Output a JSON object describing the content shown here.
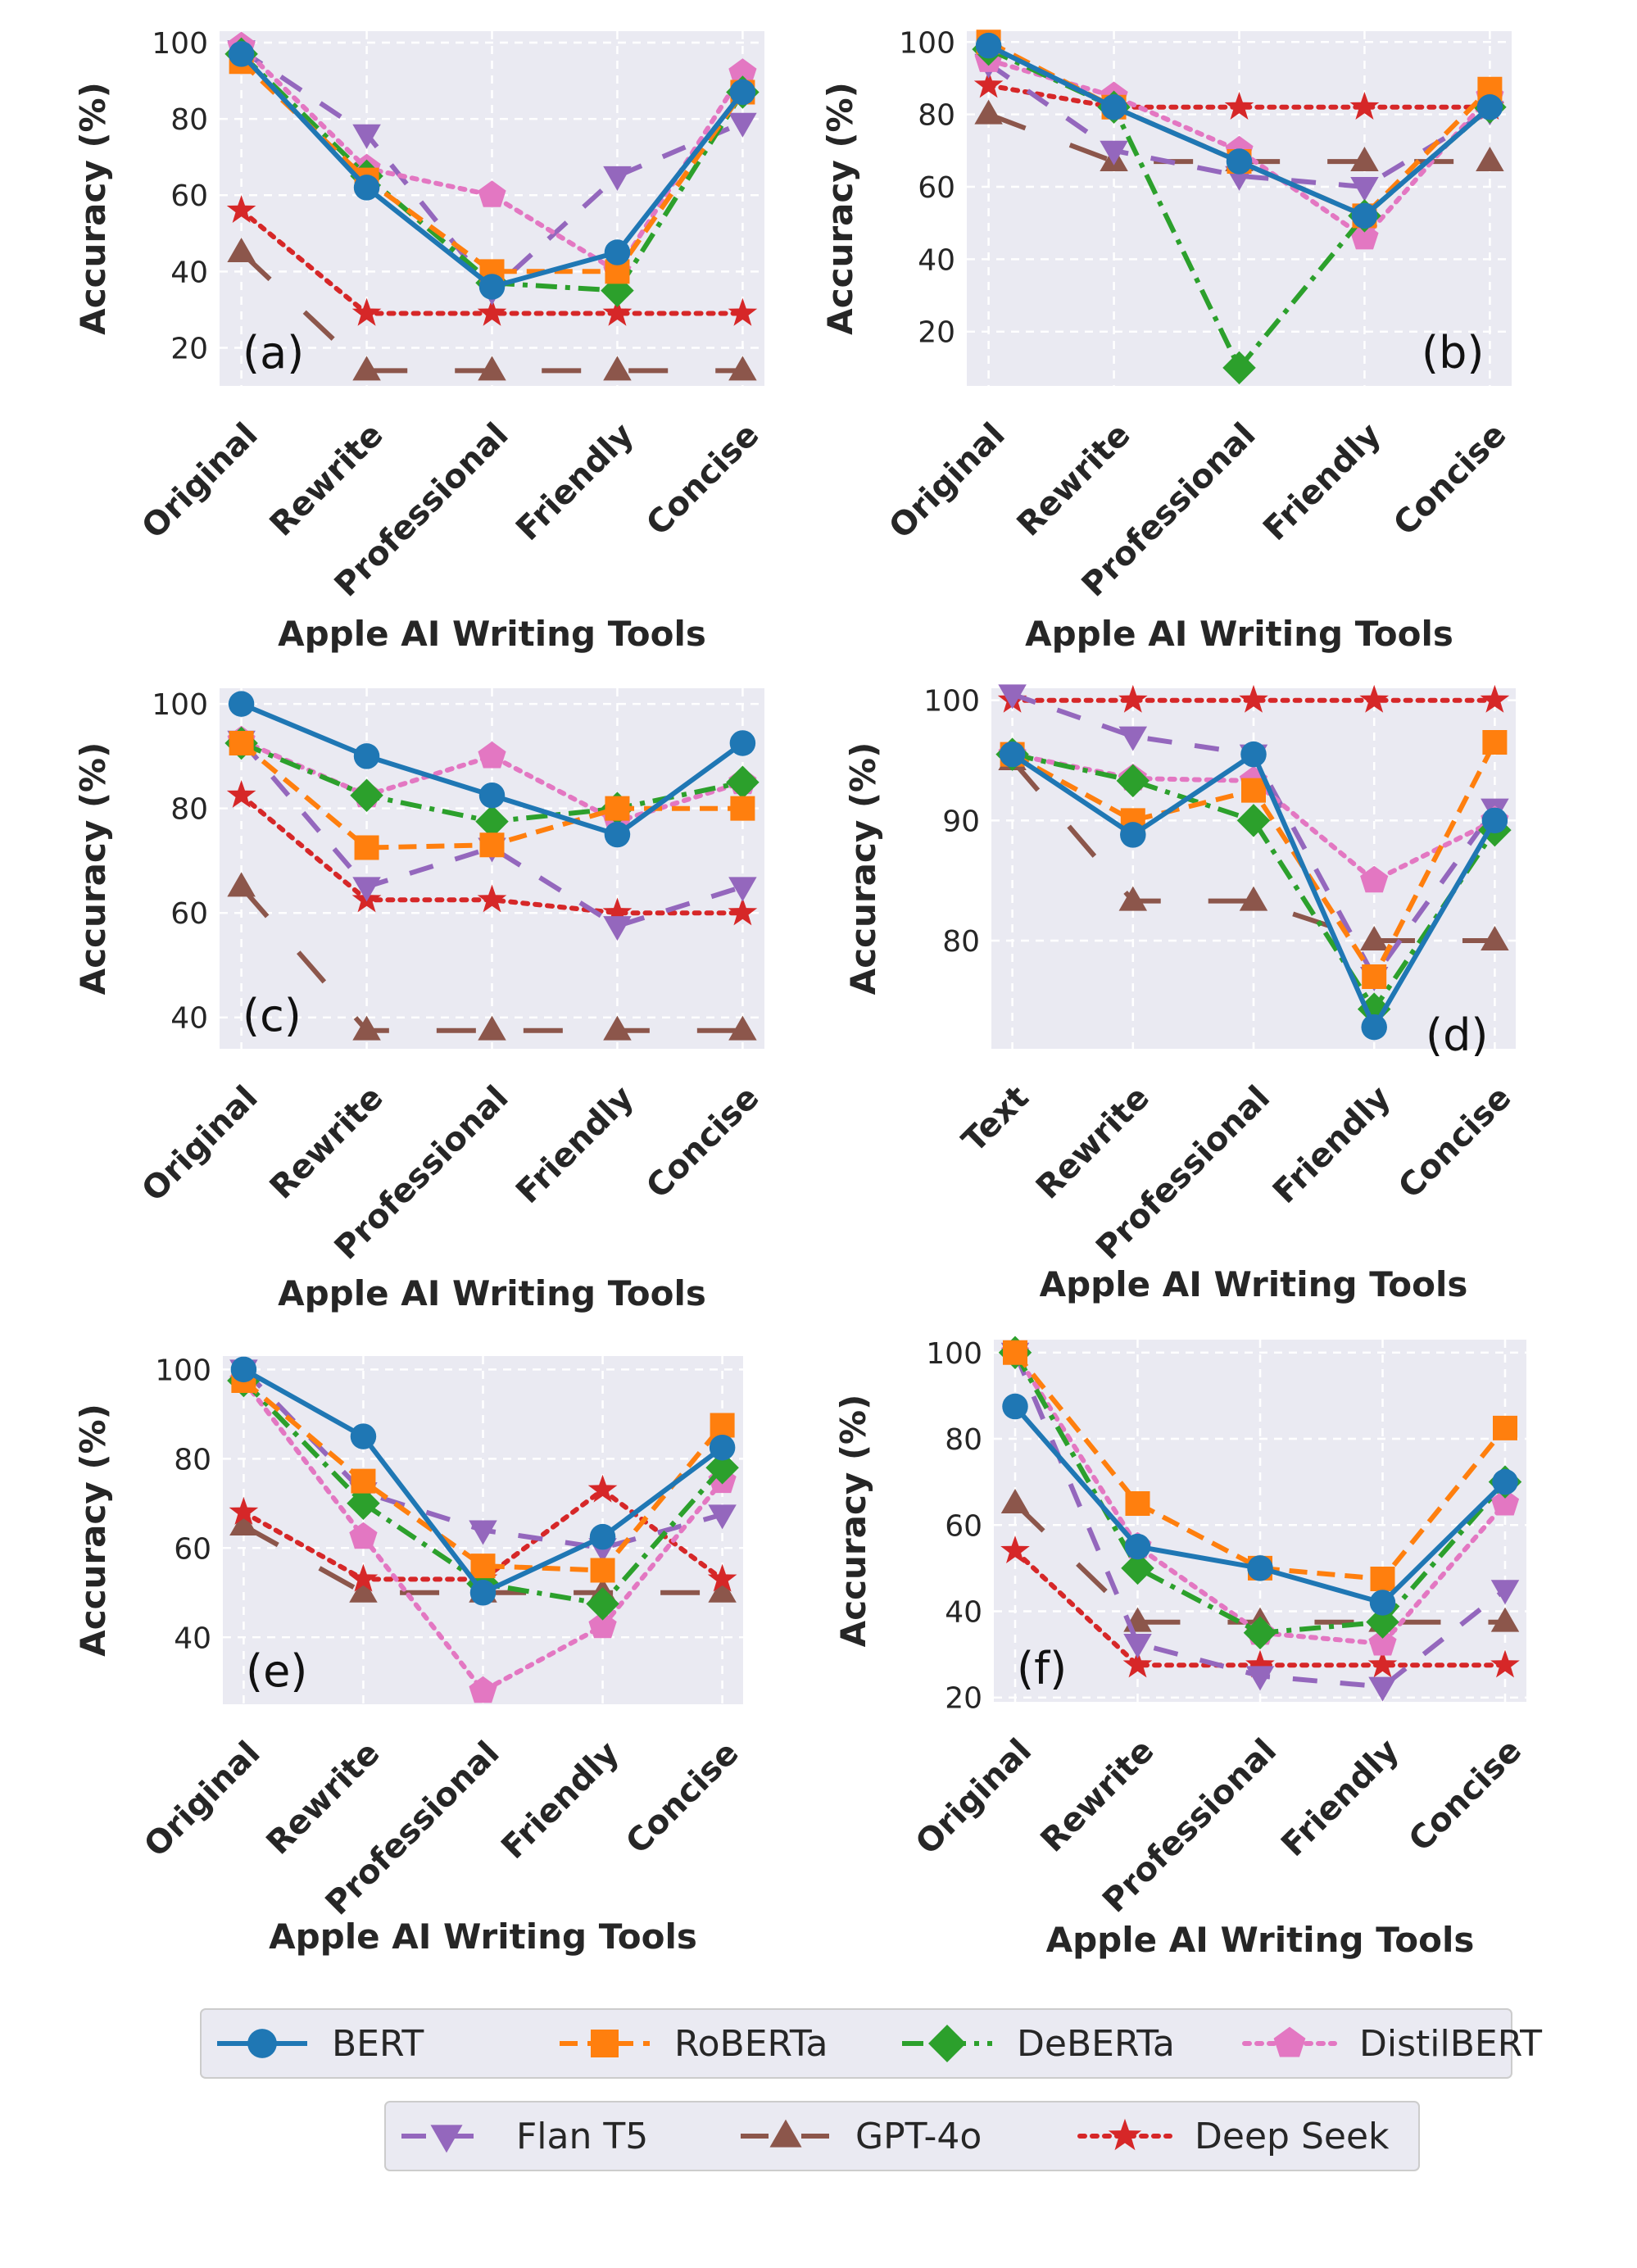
{
  "chart_data": [
    {
      "type": "line",
      "panel_label": "(a)",
      "categories": [
        "Original",
        "Rewrite",
        "Professional",
        "Friendly",
        "Concise"
      ],
      "xlabel": "Apple AI Writing Tools",
      "ylabel": "Accuracy (%)",
      "ylim": [
        10,
        103
      ],
      "yticks": [
        20,
        40,
        60,
        80,
        100
      ],
      "grid": true,
      "series": [
        {
          "name": "BERT",
          "values": [
            97,
            62,
            36,
            45,
            87
          ]
        },
        {
          "name": "RoBERTa",
          "values": [
            95,
            64,
            40,
            40,
            87
          ]
        },
        {
          "name": "DeBERTa",
          "values": [
            97,
            65,
            37,
            35,
            87
          ]
        },
        {
          "name": "DistilBERT",
          "values": [
            99,
            67,
            60,
            40,
            92
          ]
        },
        {
          "name": "Flan T5",
          "values": [
            98,
            76,
            35,
            65,
            79
          ]
        },
        {
          "name": "GPT-4o",
          "values": [
            45,
            14,
            14,
            14,
            14
          ]
        },
        {
          "name": "Deep Seek",
          "values": [
            56,
            29,
            29,
            29,
            29
          ]
        }
      ]
    },
    {
      "type": "line",
      "panel_label": "(b)",
      "categories": [
        "Original",
        "Rewrite",
        "Professional",
        "Friendly",
        "Concise"
      ],
      "xlabel": "Apple AI Writing Tools",
      "ylabel": "Accuracy (%)",
      "ylim": [
        5,
        103
      ],
      "yticks": [
        20,
        40,
        60,
        80,
        100
      ],
      "grid": true,
      "series": [
        {
          "name": "BERT",
          "values": [
            99,
            82,
            67,
            52,
            82
          ]
        },
        {
          "name": "RoBERTa",
          "values": [
            100,
            82,
            67,
            52,
            87
          ]
        },
        {
          "name": "DeBERTa",
          "values": [
            98,
            82,
            10,
            52,
            82
          ]
        },
        {
          "name": "DistilBERT",
          "values": [
            95,
            85,
            70,
            46,
            85
          ]
        },
        {
          "name": "Flan T5",
          "values": [
            94,
            70,
            63,
            60,
            81
          ]
        },
        {
          "name": "GPT-4o",
          "values": [
            80,
            67,
            67,
            67,
            67
          ]
        },
        {
          "name": "Deep Seek",
          "values": [
            88,
            82,
            82,
            82,
            82
          ]
        }
      ]
    },
    {
      "type": "line",
      "panel_label": "(c)",
      "categories": [
        "Original",
        "Rewrite",
        "Professional",
        "Friendly",
        "Concise"
      ],
      "xlabel": "Apple AI Writing Tools",
      "ylabel": "Accuracy (%)",
      "ylim": [
        34,
        103
      ],
      "yticks": [
        40,
        60,
        80,
        100
      ],
      "grid": true,
      "series": [
        {
          "name": "BERT",
          "values": [
            100,
            90,
            82.5,
            75,
            92.5
          ]
        },
        {
          "name": "RoBERTa",
          "values": [
            92.5,
            72.5,
            73,
            80,
            80
          ]
        },
        {
          "name": "DeBERTa",
          "values": [
            92.5,
            82.5,
            77.5,
            80,
            85
          ]
        },
        {
          "name": "DistilBERT",
          "values": [
            93,
            82.5,
            90,
            77.5,
            85
          ]
        },
        {
          "name": "Flan T5",
          "values": [
            93,
            65,
            72.5,
            57.5,
            65
          ]
        },
        {
          "name": "GPT-4o",
          "values": [
            65,
            37.5,
            37.5,
            37.5,
            37.5
          ]
        },
        {
          "name": "Deep Seek",
          "values": [
            82.5,
            62.5,
            62.5,
            60,
            60
          ]
        }
      ]
    },
    {
      "type": "line",
      "panel_label": "(d)",
      "categories": [
        "Text",
        "Rewrite",
        "Professional",
        "Friendly",
        "Concise"
      ],
      "xlabel": "Apple AI Writing Tools",
      "ylabel": "Accuracy (%)",
      "ylim": [
        71,
        101
      ],
      "yticks": [
        80,
        90,
        100
      ],
      "grid": true,
      "series": [
        {
          "name": "BERT",
          "values": [
            95.5,
            88.8,
            95.5,
            72.8,
            90
          ]
        },
        {
          "name": "RoBERTa",
          "values": [
            95.5,
            90,
            92.5,
            77,
            96.5
          ]
        },
        {
          "name": "DeBERTa",
          "values": [
            95.5,
            93.3,
            90,
            74.3,
            89.2
          ]
        },
        {
          "name": "DistilBERT",
          "values": [
            95.5,
            93.5,
            93.3,
            85,
            90
          ]
        },
        {
          "name": "Flan T5",
          "values": [
            100.5,
            97,
            95.5,
            77,
            91
          ]
        },
        {
          "name": "GPT-4o",
          "values": [
            95,
            83.3,
            83.3,
            80,
            80
          ]
        },
        {
          "name": "Deep Seek",
          "values": [
            100,
            100,
            100,
            100,
            100
          ]
        }
      ]
    },
    {
      "type": "line",
      "panel_label": "(e)",
      "categories": [
        "Original",
        "Rewrite",
        "Professional",
        "Friendly",
        "Concise"
      ],
      "xlabel": "Apple AI Writing Tools",
      "ylabel": "Accuracy (%)",
      "ylim": [
        25,
        103
      ],
      "yticks": [
        40,
        60,
        80,
        100
      ],
      "grid": true,
      "series": [
        {
          "name": "BERT",
          "values": [
            100,
            85,
            50,
            62.5,
            82.5
          ]
        },
        {
          "name": "RoBERTa",
          "values": [
            97.5,
            75,
            56,
            55,
            87.5
          ]
        },
        {
          "name": "DeBERTa",
          "values": [
            97.5,
            70,
            52,
            47.5,
            78
          ]
        },
        {
          "name": "DistilBERT",
          "values": [
            97.5,
            62.5,
            28,
            42.5,
            75
          ]
        },
        {
          "name": "Flan T5",
          "values": [
            100,
            72.5,
            64,
            60,
            67.5
          ]
        },
        {
          "name": "GPT-4o",
          "values": [
            65,
            50,
            50,
            50,
            50
          ]
        },
        {
          "name": "Deep Seek",
          "values": [
            68,
            53,
            53,
            73,
            53
          ]
        }
      ]
    },
    {
      "type": "line",
      "panel_label": "(f)",
      "categories": [
        "Original",
        "Rewrite",
        "Professional",
        "Friendly",
        "Concise"
      ],
      "xlabel": "Apple AI Writing Tools",
      "ylabel": "Accuracy (%)",
      "ylim": [
        19,
        103
      ],
      "yticks": [
        20,
        40,
        60,
        80,
        100
      ],
      "grid": true,
      "series": [
        {
          "name": "BERT",
          "values": [
            87.5,
            55,
            50,
            42,
            70
          ]
        },
        {
          "name": "RoBERTa",
          "values": [
            100,
            65,
            50,
            47.5,
            82.5
          ]
        },
        {
          "name": "DeBERTa",
          "values": [
            100,
            50,
            35,
            37.5,
            70
          ]
        },
        {
          "name": "DistilBERT",
          "values": [
            100,
            55,
            35,
            32.5,
            65
          ]
        },
        {
          "name": "Flan T5",
          "values": [
            100,
            32.5,
            25,
            22.5,
            45
          ]
        },
        {
          "name": "GPT-4o",
          "values": [
            65,
            37.5,
            37.5,
            37.5,
            37.5
          ]
        },
        {
          "name": "Deep Seek",
          "values": [
            54,
            27.5,
            27.5,
            27.5,
            27.5
          ]
        }
      ]
    }
  ],
  "legend": {
    "placement": "bottom",
    "items": [
      {
        "name": "BERT",
        "color": "#1f77b4",
        "marker": "circle",
        "linestyle": "solid"
      },
      {
        "name": "RoBERTa",
        "color": "#ff7f0e",
        "marker": "square",
        "linestyle": "dashed"
      },
      {
        "name": "DeBERTa",
        "color": "#2ca02c",
        "marker": "diamond",
        "linestyle": "dashdot"
      },
      {
        "name": "DistilBERT",
        "color": "#e377c2",
        "marker": "pentagon",
        "linestyle": "dotted"
      },
      {
        "name": "Flan T5",
        "color": "#9467bd",
        "marker": "triangle-down",
        "linestyle": "long-dash"
      },
      {
        "name": "GPT-4o",
        "color": "#8c564b",
        "marker": "triangle-up",
        "linestyle": "loose-dash"
      },
      {
        "name": "Deep Seek",
        "color": "#d62728",
        "marker": "star",
        "linestyle": "dotted"
      }
    ]
  },
  "colors": {
    "axes_bg": "#eaeaf2",
    "grid": "#ffffff",
    "text": "#262626"
  }
}
